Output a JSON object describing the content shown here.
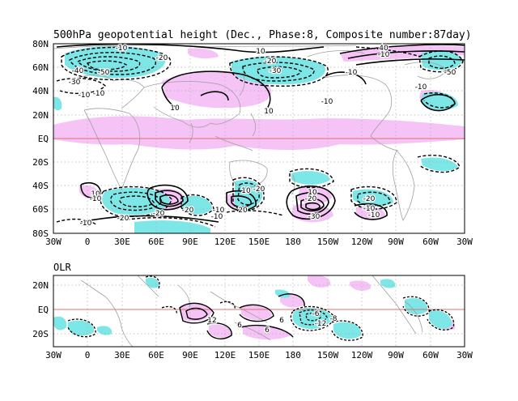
{
  "top_panel": {
    "title": "500hPa geopotential height (Dec., Phase:8, Composite number:87day)",
    "y_ticks": [
      "80N",
      "60N",
      "40N",
      "20N",
      "EQ",
      "20S",
      "40S",
      "60S",
      "80S"
    ],
    "x_ticks": [
      "30W",
      "0",
      "30E",
      "60E",
      "90E",
      "120E",
      "150E",
      "180",
      "150W",
      "120W",
      "90W",
      "60W",
      "30W"
    ],
    "contour_labels": [
      "-10",
      "-20",
      "-50",
      "-40",
      "-30",
      "-10",
      "10",
      "-20",
      "10",
      "-30",
      "10",
      "-10",
      "-10",
      "40",
      "-10",
      "-10",
      "-50",
      "10",
      "-10",
      "-20",
      "-20",
      "-10",
      "-20",
      "20",
      "-10",
      "-20",
      "10",
      "-20",
      "-10",
      "-10",
      "10",
      "-30",
      "-10",
      "-10",
      "-20"
    ]
  },
  "bottom_panel": {
    "label": "OLR",
    "y_ticks": [
      "20N",
      "EQ",
      "20S"
    ],
    "x_ticks": [
      "30W",
      "0",
      "30E",
      "60E",
      "90E",
      "120E",
      "150E",
      "180",
      "150W",
      "120W",
      "90W",
      "60W",
      "30W"
    ],
    "contour_labels": [
      "12",
      "-6",
      "6",
      "-8",
      "6",
      "-12",
      "6"
    ]
  },
  "colors": {
    "positive_shading": "#f5c3f5",
    "negative_shading": "#7de6e6",
    "equator_line": "#e07070",
    "coastline": "#a0a0a0",
    "grid": "#b0b0b0"
  }
}
